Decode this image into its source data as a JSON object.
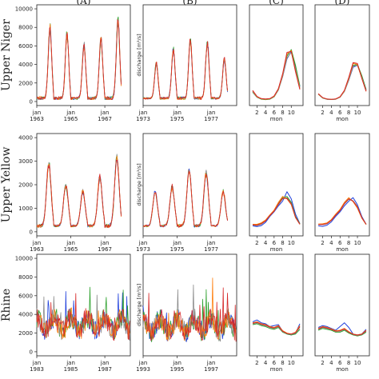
{
  "column_labels": [
    "(A)",
    "(B)",
    "(C)",
    "(D)"
  ],
  "row_labels": [
    "Upper Niger",
    "Upper Yellow",
    "Rhine"
  ],
  "ylabel": "discharge [m³/s]",
  "month_axis_label": "mon",
  "series_colors": [
    "#1f3fdc",
    "#2ca02c",
    "#8a8a8a",
    "#ff7f0e",
    "#d62728"
  ],
  "chart_data": [
    {
      "type": "line",
      "row": "Upper Niger",
      "column": "(A)",
      "ylim": [
        0,
        10000
      ],
      "yticks": [
        0,
        2000,
        4000,
        6000,
        8000,
        10000
      ],
      "xticks": [
        {
          "top": "jan",
          "bottom": "1963"
        },
        {
          "top": "jan",
          "bottom": "1965"
        },
        {
          "top": "jan",
          "bottom": "1967"
        }
      ],
      "x_year_start": 1963,
      "x_year_end": 1968.5,
      "peaks": [
        7900,
        7300,
        6100,
        6900,
        8800
      ],
      "peak_month": 9.3,
      "baseline": 350
    },
    {
      "type": "line",
      "row": "Upper Niger",
      "column": "(B)",
      "ylim": [
        0,
        10000
      ],
      "yticks": [
        0,
        2000,
        4000,
        6000,
        8000,
        10000
      ],
      "xticks": [
        {
          "top": "jan",
          "bottom": "1973"
        },
        {
          "top": "jan",
          "bottom": "1975"
        },
        {
          "top": "jan",
          "bottom": "1977"
        }
      ],
      "x_year_start": 1973,
      "x_year_end": 1978.5,
      "peaks": [
        4100,
        5600,
        6700,
        6400,
        4600
      ],
      "peak_month": 9.3,
      "baseline": 350
    },
    {
      "type": "line",
      "row": "Upper Niger",
      "column": "(C)",
      "ylim": [
        0,
        10000
      ],
      "x": [
        1,
        2,
        3,
        4,
        5,
        6,
        7,
        8,
        9,
        10,
        11,
        12
      ],
      "xticks": [
        2,
        4,
        6,
        8,
        10
      ],
      "series_values": [
        [
          1100,
          500,
          300,
          250,
          300,
          550,
          1300,
          2700,
          4600,
          5400,
          3700,
          1600
        ],
        [
          1000,
          450,
          250,
          200,
          250,
          500,
          1250,
          2800,
          4900,
          5600,
          3900,
          1700
        ],
        [
          1050,
          480,
          280,
          230,
          280,
          520,
          1250,
          2700,
          4700,
          5300,
          3500,
          1500
        ],
        [
          1150,
          520,
          300,
          250,
          300,
          560,
          1350,
          2900,
          5100,
          5500,
          3300,
          1400
        ],
        [
          1200,
          550,
          320,
          270,
          320,
          600,
          1400,
          3000,
          5300,
          5400,
          3200,
          1300
        ]
      ]
    },
    {
      "type": "line",
      "row": "Upper Niger",
      "column": "(D)",
      "ylim": [
        0,
        10000
      ],
      "x": [
        1,
        2,
        3,
        4,
        5,
        6,
        7,
        8,
        9,
        10,
        11,
        12
      ],
      "xticks": [
        2,
        4,
        6,
        8,
        10
      ],
      "series_values": [
        [
          800,
          400,
          250,
          220,
          260,
          480,
          1100,
          2300,
          3700,
          3900,
          2700,
          1300
        ],
        [
          780,
          380,
          240,
          210,
          250,
          470,
          1100,
          2400,
          3900,
          4000,
          2800,
          1300
        ],
        [
          790,
          390,
          240,
          210,
          250,
          460,
          1080,
          2300,
          3800,
          3900,
          2600,
          1200
        ],
        [
          820,
          410,
          260,
          230,
          270,
          500,
          1150,
          2500,
          4100,
          4000,
          2500,
          1100
        ],
        [
          850,
          420,
          270,
          240,
          280,
          520,
          1200,
          2600,
          4200,
          4100,
          2500,
          1100
        ]
      ]
    },
    {
      "type": "line",
      "row": "Upper Yellow",
      "column": "(A)",
      "ylim": [
        0,
        4000
      ],
      "yticks": [
        0,
        1000,
        2000,
        3000,
        4000
      ],
      "xticks": [
        {
          "top": "jan",
          "bottom": "1963"
        },
        {
          "top": "jan",
          "bottom": "1965"
        },
        {
          "top": "jan",
          "bottom": "1967"
        }
      ],
      "x_year_start": 1963,
      "x_year_end": 1968.5,
      "peaks": [
        2900,
        2000,
        1700,
        2300,
        3100
      ],
      "peak_month": 8.5,
      "baseline": 250
    },
    {
      "type": "line",
      "row": "Upper Yellow",
      "column": "(B)",
      "ylim": [
        0,
        4000
      ],
      "yticks": [
        0,
        1000,
        2000,
        3000,
        4000
      ],
      "xticks": [
        {
          "top": "jan",
          "bottom": "1973"
        },
        {
          "top": "jan",
          "bottom": "1975"
        },
        {
          "top": "jan",
          "bottom": "1977"
        }
      ],
      "x_year_start": 1973,
      "x_year_end": 1978.5,
      "peaks": [
        1700,
        1900,
        2600,
        2500,
        1700
      ],
      "peak_month": 8.5,
      "baseline": 250
    },
    {
      "type": "line",
      "row": "Upper Yellow",
      "column": "(C)",
      "ylim": [
        0,
        4000
      ],
      "x": [
        1,
        2,
        3,
        4,
        5,
        6,
        7,
        8,
        9,
        10,
        11,
        12
      ],
      "xticks": [
        2,
        4,
        6,
        8,
        10
      ],
      "series_values": [
        [
          250,
          220,
          260,
          400,
          650,
          850,
          1100,
          1300,
          1700,
          1400,
          750,
          350
        ],
        [
          300,
          300,
          350,
          480,
          700,
          900,
          1200,
          1450,
          1500,
          1250,
          650,
          350
        ],
        [
          280,
          260,
          320,
          450,
          680,
          870,
          1150,
          1400,
          1450,
          1200,
          620,
          330
        ],
        [
          320,
          320,
          380,
          500,
          720,
          920,
          1250,
          1500,
          1400,
          1150,
          600,
          320
        ],
        [
          300,
          280,
          340,
          460,
          690,
          880,
          1180,
          1420,
          1420,
          1180,
          610,
          320
        ]
      ]
    },
    {
      "type": "line",
      "row": "Upper Yellow",
      "column": "(D)",
      "ylim": [
        0,
        4000
      ],
      "x": [
        1,
        2,
        3,
        4,
        5,
        6,
        7,
        8,
        9,
        10,
        11,
        12
      ],
      "xticks": [
        2,
        4,
        6,
        8,
        10
      ],
      "series_values": [
        [
          250,
          230,
          280,
          420,
          650,
          850,
          1100,
          1300,
          1450,
          1150,
          650,
          320
        ],
        [
          320,
          320,
          360,
          500,
          720,
          920,
          1200,
          1400,
          1300,
          1050,
          600,
          320
        ],
        [
          300,
          300,
          340,
          480,
          700,
          900,
          1180,
          1380,
          1320,
          1080,
          610,
          320
        ],
        [
          330,
          340,
          380,
          520,
          750,
          950,
          1250,
          1450,
          1280,
          1000,
          580,
          310
        ],
        [
          310,
          310,
          350,
          490,
          710,
          910,
          1200,
          1400,
          1300,
          1050,
          600,
          320
        ]
      ]
    },
    {
      "type": "line",
      "row": "Rhine",
      "column": "(A)",
      "ylim": [
        0,
        10000
      ],
      "yticks": [
        0,
        2000,
        4000,
        6000,
        8000,
        10000
      ],
      "xticks": [
        {
          "top": "jan",
          "bottom": "1983"
        },
        {
          "top": "jan",
          "bottom": "1985"
        },
        {
          "top": "jan",
          "bottom": "1987"
        }
      ],
      "x_year_start": 1983,
      "x_year_end": 1988.5,
      "mean_level": 2600,
      "max_value": 8200
    },
    {
      "type": "line",
      "row": "Rhine",
      "column": "(B)",
      "ylim": [
        0,
        10000
      ],
      "yticks": [
        0,
        2000,
        4000,
        6000,
        8000,
        10000
      ],
      "xticks": [
        {
          "top": "jan",
          "bottom": "1993"
        },
        {
          "top": "jan",
          "bottom": "1995"
        },
        {
          "top": "jan",
          "bottom": "1997"
        }
      ],
      "x_year_start": 1993,
      "x_year_end": 1998.5,
      "mean_level": 2500,
      "max_value": 8300
    },
    {
      "type": "line",
      "row": "Rhine",
      "column": "(C)",
      "ylim": [
        0,
        10000
      ],
      "x": [
        1,
        2,
        3,
        4,
        5,
        6,
        7,
        8,
        9,
        10,
        11,
        12
      ],
      "xticks": [
        2,
        4,
        6,
        8,
        10
      ],
      "series_values": [
        [
          3200,
          3400,
          3100,
          3000,
          2700,
          2800,
          2900,
          2200,
          1900,
          1800,
          2000,
          3000
        ],
        [
          2900,
          3000,
          2800,
          2700,
          2500,
          2400,
          2600,
          2100,
          1900,
          1800,
          1900,
          2400
        ],
        [
          3000,
          3100,
          2900,
          2800,
          2600,
          2500,
          2700,
          2150,
          1950,
          1850,
          2000,
          2600
        ],
        [
          3100,
          3200,
          3000,
          2900,
          2700,
          2600,
          2800,
          2250,
          2000,
          1900,
          2100,
          2800
        ],
        [
          3050,
          3150,
          2950,
          2850,
          2650,
          2550,
          2750,
          2200,
          1950,
          1900,
          2050,
          2700
        ]
      ]
    },
    {
      "type": "line",
      "row": "Rhine",
      "column": "(D)",
      "ylim": [
        0,
        10000
      ],
      "x": [
        1,
        2,
        3,
        4,
        5,
        6,
        7,
        8,
        9,
        10,
        11,
        12
      ],
      "xticks": [
        2,
        4,
        6,
        8,
        10
      ],
      "series_values": [
        [
          2600,
          2800,
          2700,
          2500,
          2300,
          2700,
          3100,
          2600,
          1900,
          1800,
          1900,
          2400
        ],
        [
          2300,
          2500,
          2400,
          2300,
          2100,
          2100,
          2300,
          2000,
          1800,
          1700,
          1800,
          2100
        ],
        [
          2400,
          2600,
          2500,
          2400,
          2200,
          2200,
          2400,
          2100,
          1850,
          1750,
          1850,
          2200
        ],
        [
          2500,
          2700,
          2600,
          2450,
          2250,
          2300,
          2500,
          2150,
          1900,
          1800,
          1900,
          2300
        ],
        [
          2450,
          2650,
          2550,
          2400,
          2200,
          2250,
          2450,
          2100,
          1870,
          1780,
          1880,
          2250
        ]
      ]
    }
  ]
}
